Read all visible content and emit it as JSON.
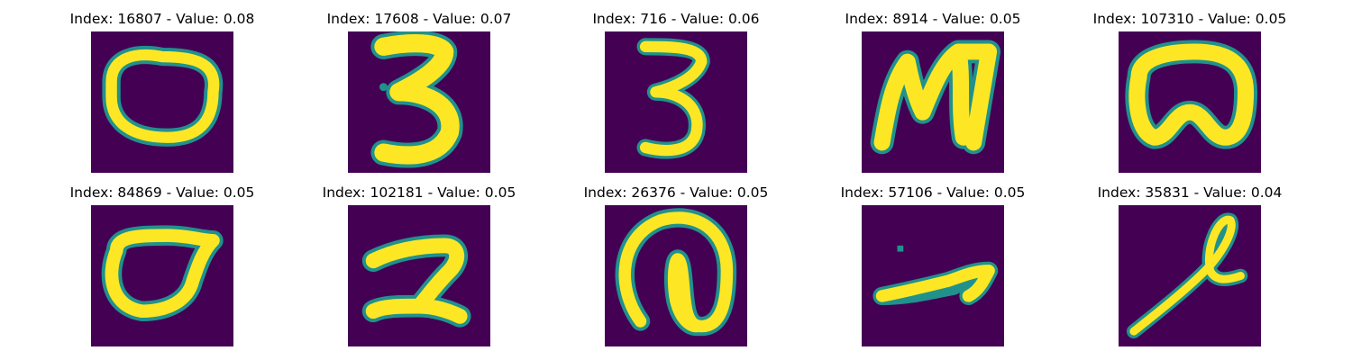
{
  "colors": {
    "background": "#440154",
    "stroke_core": "#fde725",
    "stroke_edge": "#21918c"
  },
  "panels": [
    {
      "title": "Index: 16807 - Value: 0.08",
      "glyph": "zero-oval"
    },
    {
      "title": "Index: 17608 - Value: 0.07",
      "glyph": "digit-3-bold"
    },
    {
      "title": "Index: 716 - Value: 0.06",
      "glyph": "digit-3-thin"
    },
    {
      "title": "Index: 8914 - Value: 0.05",
      "glyph": "letter-m"
    },
    {
      "title": "Index: 107310 - Value: 0.05",
      "glyph": "zero-dented"
    },
    {
      "title": "Index: 84869 - Value: 0.05",
      "glyph": "zero-open"
    },
    {
      "title": "Index: 102181 - Value: 0.05",
      "glyph": "digit-2"
    },
    {
      "title": "Index: 26376 - Value: 0.05",
      "glyph": "at-sign-like"
    },
    {
      "title": "Index: 57106 - Value: 0.05",
      "glyph": "arrow-stroke"
    },
    {
      "title": "Index: 35831 - Value: 0.04",
      "glyph": "loop-stroke"
    }
  ]
}
